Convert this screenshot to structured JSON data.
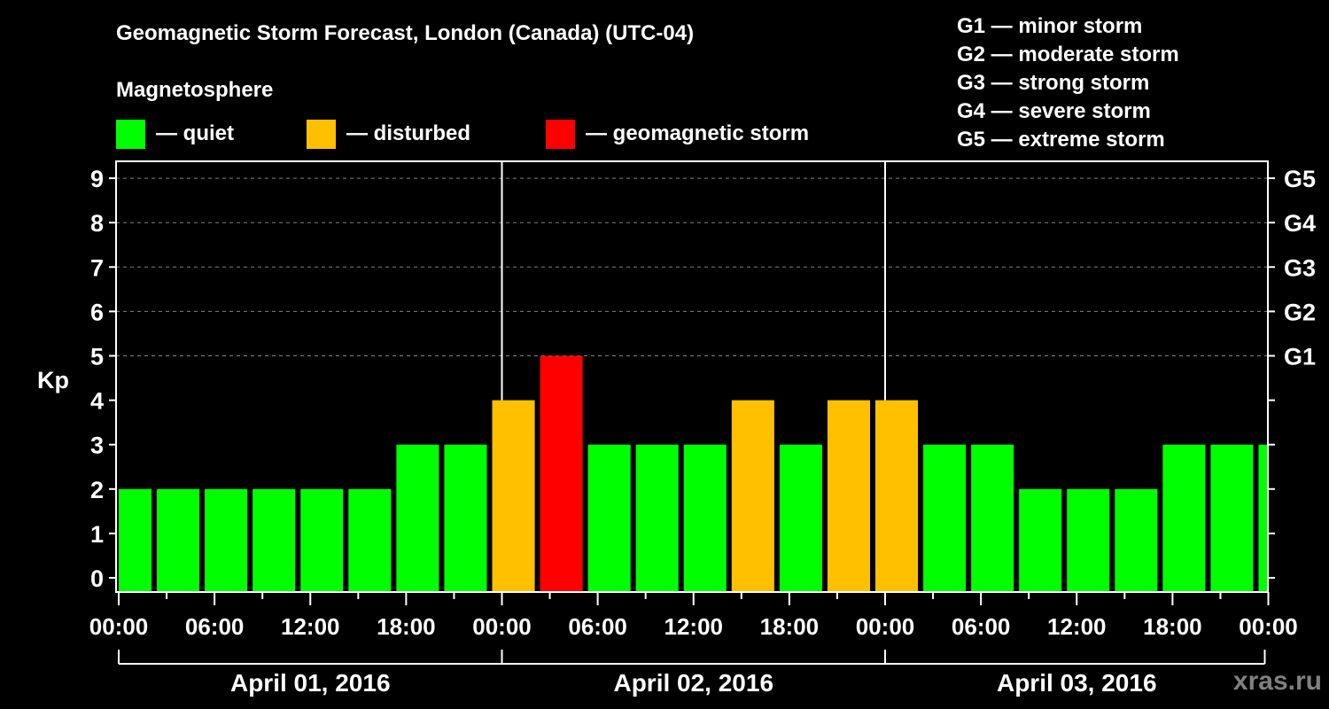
{
  "header": {
    "title": "Geomagnetic Storm Forecast, London (Canada) (UTC-04)",
    "subtitle": "Magnetosphere"
  },
  "legend": [
    {
      "label": "— quiet",
      "color": "#00ff00"
    },
    {
      "label": "— disturbed",
      "color": "#ffc000"
    },
    {
      "label": "— geomagnetic storm",
      "color": "#ff0000"
    }
  ],
  "g_scale": [
    "G1 — minor storm",
    "G2 — moderate storm",
    "G3 — strong storm",
    "G4 — severe storm",
    "G5 — extreme storm"
  ],
  "watermark": "xras.ru",
  "chart_data": {
    "type": "bar",
    "title": "Geomagnetic Storm Forecast, London (Canada) (UTC-04)",
    "xlabel": "",
    "ylabel": "Kp",
    "ylim": [
      0,
      9
    ],
    "grid": "horizontal dashed at Kp 5–9",
    "y_ticks": [
      0,
      1,
      2,
      3,
      4,
      5,
      6,
      7,
      8,
      9
    ],
    "right_axis_labels": [
      {
        "kp": 5,
        "label": "G1"
      },
      {
        "kp": 6,
        "label": "G2"
      },
      {
        "kp": 7,
        "label": "G3"
      },
      {
        "kp": 8,
        "label": "G4"
      },
      {
        "kp": 9,
        "label": "G5"
      }
    ],
    "x_tick_labels": [
      "00:00",
      "06:00",
      "12:00",
      "18:00",
      "00:00",
      "06:00",
      "12:00",
      "18:00",
      "00:00",
      "06:00",
      "12:00",
      "18:00",
      "00:00"
    ],
    "days": [
      "April 01, 2016",
      "April 02, 2016",
      "April 03, 2016"
    ],
    "interval_hours": 3,
    "values": [
      2,
      2,
      2,
      2,
      2,
      2,
      3,
      3,
      4,
      5,
      3,
      3,
      3,
      4,
      3,
      4,
      4,
      3,
      3,
      2,
      2,
      2,
      3,
      3,
      3
    ],
    "status": [
      "quiet",
      "quiet",
      "quiet",
      "quiet",
      "quiet",
      "quiet",
      "quiet",
      "quiet",
      "disturbed",
      "storm",
      "quiet",
      "quiet",
      "quiet",
      "disturbed",
      "quiet",
      "disturbed",
      "disturbed",
      "quiet",
      "quiet",
      "quiet",
      "quiet",
      "quiet",
      "quiet",
      "quiet",
      "quiet"
    ],
    "colors": {
      "quiet": "#00ff00",
      "disturbed": "#ffc000",
      "storm": "#ff0000"
    }
  }
}
